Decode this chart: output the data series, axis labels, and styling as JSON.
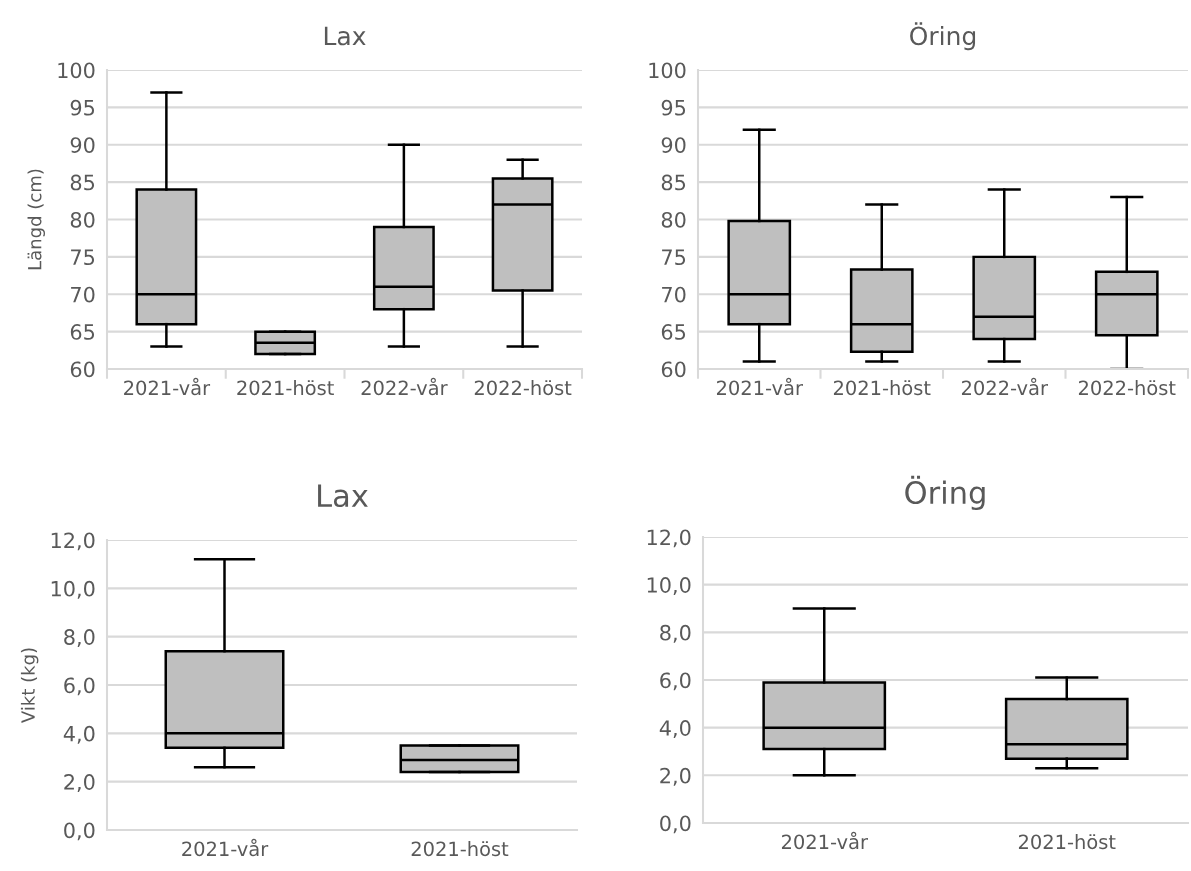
{
  "chart_data": [
    {
      "type": "box",
      "title": "Lax",
      "ylabel": "Längd (cm)",
      "categories": [
        "2021-vår",
        "2021-höst",
        "2022-vår",
        "2022-höst"
      ],
      "color": "#bfbfbf",
      "grid": "y",
      "ylim": [
        60,
        100
      ],
      "yticks": [
        60,
        65,
        70,
        75,
        80,
        85,
        90,
        95,
        100
      ],
      "boxes": [
        {
          "low": 63,
          "q1": 66,
          "median": 70,
          "q3": 84,
          "high": 97
        },
        {
          "low": 62,
          "q1": 62,
          "median": 63.5,
          "q3": 65,
          "high": 65
        },
        {
          "low": 63,
          "q1": 68,
          "median": 71,
          "q3": 79,
          "high": 90
        },
        {
          "low": 63,
          "q1": 70.5,
          "median": 82,
          "q3": 85.5,
          "high": 88
        }
      ]
    },
    {
      "type": "box",
      "title": "Öring",
      "categories": [
        "2021-vår",
        "2021-höst",
        "2022-vår",
        "2022-höst"
      ],
      "color": "#bfbfbf",
      "grid": "y",
      "ylim": [
        60,
        100
      ],
      "yticks": [
        60,
        65,
        70,
        75,
        80,
        85,
        90,
        95,
        100
      ],
      "boxes": [
        {
          "low": 61,
          "q1": 66,
          "median": 70,
          "q3": 79.8,
          "high": 92
        },
        {
          "low": 61,
          "q1": 62.3,
          "median": 66,
          "q3": 73.3,
          "high": 82
        },
        {
          "low": 61,
          "q1": 64,
          "median": 67,
          "q3": 75,
          "high": 84
        },
        {
          "low": 60,
          "q1": 64.5,
          "median": 70,
          "q3": 73,
          "high": 83
        }
      ]
    },
    {
      "type": "box",
      "title": "Lax",
      "ylabel": "Vikt (kg)",
      "categories": [
        "2021-vår",
        "2021-höst"
      ],
      "color": "#bfbfbf",
      "grid": "y",
      "ylim": [
        0,
        12
      ],
      "yticks": [
        {
          "value": 0,
          "label": "0,0"
        },
        {
          "value": 2,
          "label": "2,0"
        },
        {
          "value": 4,
          "label": "4,0"
        },
        {
          "value": 6,
          "label": "6,0"
        },
        {
          "value": 8,
          "label": "8,0"
        },
        {
          "value": 10,
          "label": "10,0"
        },
        {
          "value": 12,
          "label": "12,0"
        }
      ],
      "boxes": [
        {
          "low": 2.6,
          "q1": 3.4,
          "median": 4.0,
          "q3": 7.4,
          "high": 11.2
        },
        {
          "low": 2.4,
          "q1": 2.4,
          "median": 2.9,
          "q3": 3.5,
          "high": 3.5
        }
      ]
    },
    {
      "type": "box",
      "title": "Öring",
      "categories": [
        "2021-vår",
        "2021-höst"
      ],
      "color": "#bfbfbf",
      "grid": "y",
      "ylim": [
        0,
        12
      ],
      "yticks": [
        {
          "value": 0,
          "label": "0,0"
        },
        {
          "value": 2,
          "label": "2,0"
        },
        {
          "value": 4,
          "label": "4,0"
        },
        {
          "value": 6,
          "label": "6,0"
        },
        {
          "value": 8,
          "label": "8,0"
        },
        {
          "value": 10,
          "label": "10,0"
        },
        {
          "value": 12,
          "label": "12,0"
        }
      ],
      "boxes": [
        {
          "low": 2.0,
          "q1": 3.1,
          "median": 4.0,
          "q3": 5.9,
          "high": 9.0
        },
        {
          "low": 2.3,
          "q1": 2.7,
          "median": 3.3,
          "q3": 5.2,
          "high": 6.1
        }
      ]
    }
  ]
}
